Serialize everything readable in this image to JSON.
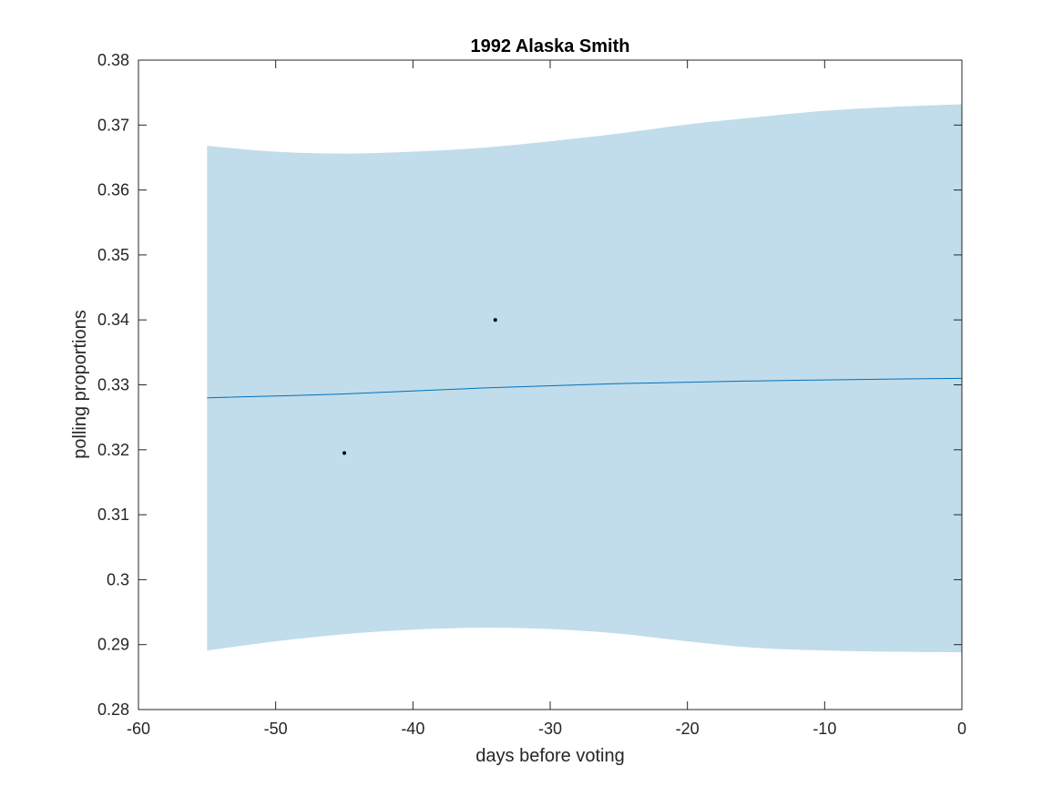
{
  "chart_data": {
    "type": "line",
    "title": "1992 Alaska Smith",
    "xlabel": "days before voting",
    "ylabel": "polling proportions",
    "xlim": [
      -60,
      0
    ],
    "ylim": [
      0.28,
      0.38
    ],
    "x_ticks": [
      -60,
      -50,
      -40,
      -30,
      -20,
      -10,
      0
    ],
    "x_tick_labels": [
      "-60",
      "-50",
      "-40",
      "-30",
      "-20",
      "-10",
      "0"
    ],
    "y_ticks": [
      0.28,
      0.29,
      0.3,
      0.31,
      0.32,
      0.33,
      0.34,
      0.35,
      0.36,
      0.37,
      0.38
    ],
    "y_tick_labels": [
      "0.28",
      "0.29",
      "0.3",
      "0.31",
      "0.32",
      "0.33",
      "0.34",
      "0.35",
      "0.36",
      "0.37",
      "0.38"
    ],
    "grid": false,
    "series": [
      {
        "kind": "line",
        "x": [
          -55,
          -45,
          -35,
          -25,
          -15,
          -5,
          0
        ],
        "y": [
          0.328,
          0.3286,
          0.3295,
          0.3302,
          0.3306,
          0.3309,
          0.331
        ]
      },
      {
        "kind": "band",
        "x": [
          -55,
          -50,
          -45,
          -40,
          -35,
          -30,
          -25,
          -20,
          -15,
          -10,
          -5,
          0
        ],
        "upper": [
          0.3668,
          0.3659,
          0.3656,
          0.3659,
          0.3665,
          0.3675,
          0.3687,
          0.3701,
          0.3712,
          0.3722,
          0.3728,
          0.3732
        ],
        "lower": [
          0.2891,
          0.2905,
          0.2916,
          0.2923,
          0.2926,
          0.2924,
          0.2917,
          0.2905,
          0.2895,
          0.2891,
          0.2889,
          0.2888
        ]
      },
      {
        "kind": "scatter",
        "x": [
          -45,
          -34
        ],
        "y": [
          0.3195,
          0.34
        ]
      }
    ],
    "colors": {
      "band": "#c1dcea",
      "line": "#0072bd",
      "points": "#000000",
      "axes": "#262626"
    }
  }
}
